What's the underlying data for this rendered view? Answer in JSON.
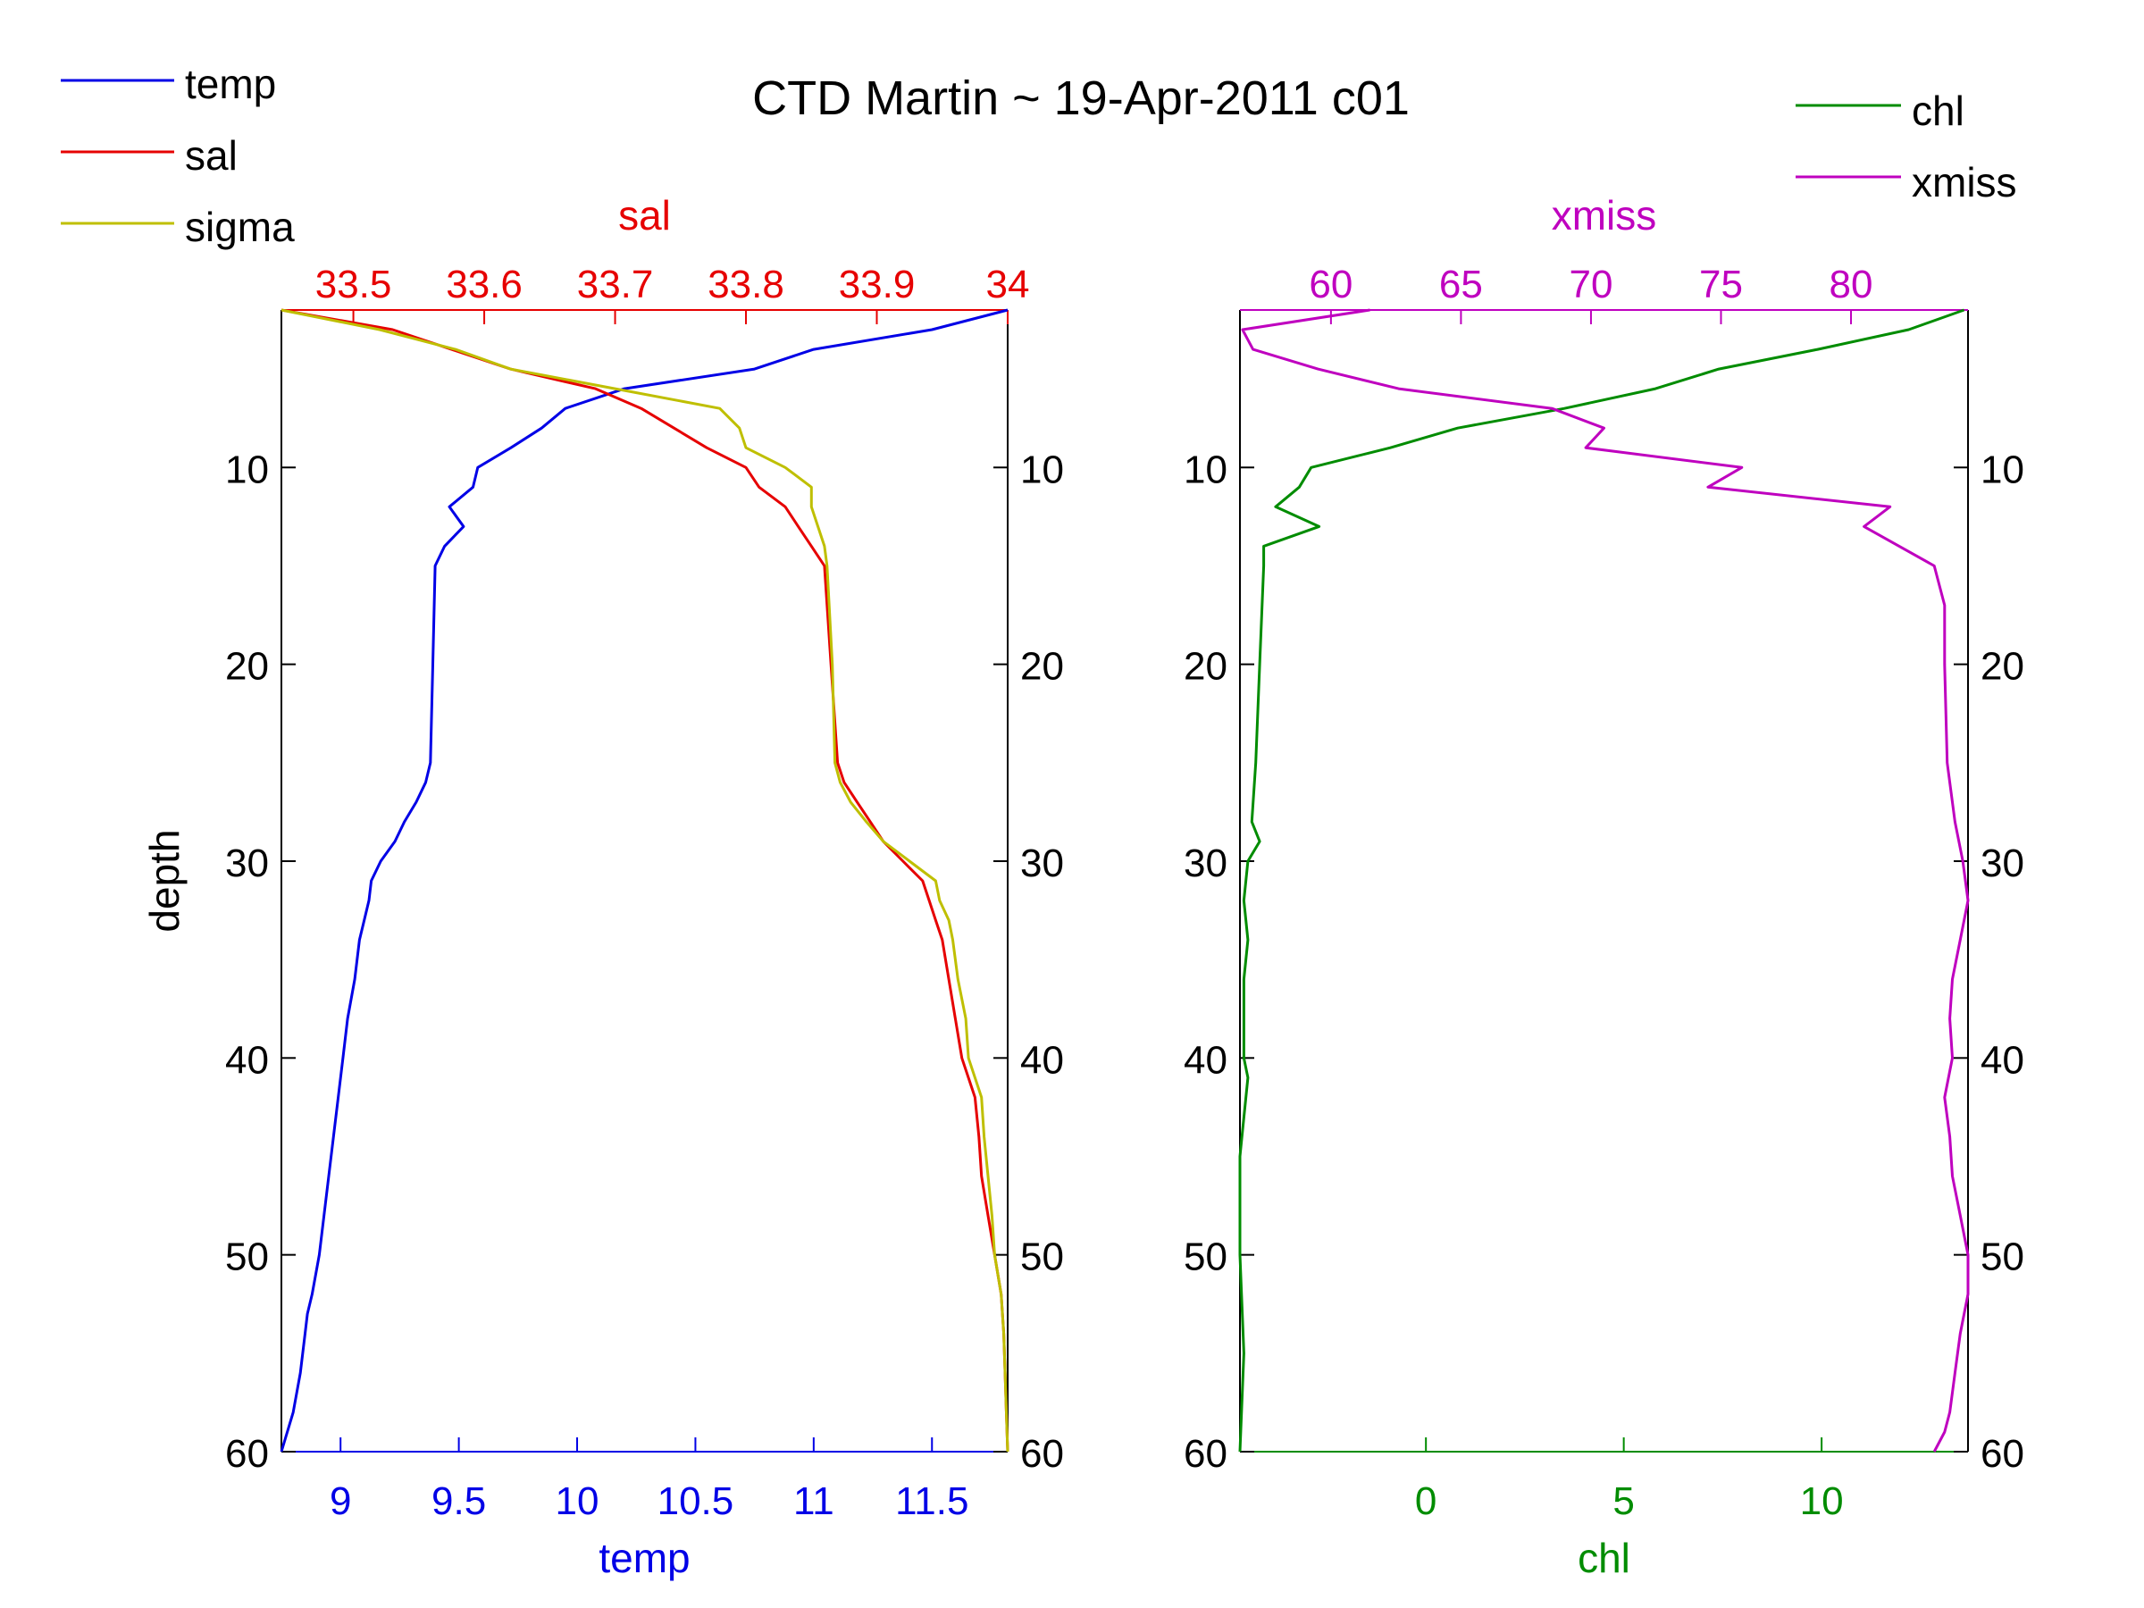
{
  "title": "CTD Martin ~ 19-Apr-2011 c01",
  "legend_left": [
    {
      "label": "temp",
      "color": "#0000e6"
    },
    {
      "label": "sal",
      "color": "#e60000"
    },
    {
      "label": "sigma",
      "color": "#bfbf00"
    }
  ],
  "legend_right": [
    {
      "label": "chl",
      "color": "#008c00"
    },
    {
      "label": "xmiss",
      "color": "#bf00bf"
    }
  ],
  "chart_data": [
    {
      "type": "line",
      "panel": "left",
      "ylabel": "depth",
      "ylim": [
        2,
        60
      ],
      "y_reversed": true,
      "yticks": [
        10,
        20,
        30,
        40,
        50,
        60
      ],
      "bottom_axis": {
        "label": "temp",
        "color": "#0000e6",
        "lim": [
          8.75,
          11.82
        ],
        "ticks": [
          9,
          9.5,
          10,
          10.5,
          11,
          11.5
        ],
        "tick_labels": [
          "9",
          "9.5",
          "10",
          "10.5",
          "11",
          "11.5"
        ]
      },
      "top_axis": {
        "label": "sal",
        "color": "#e60000",
        "lim": [
          33.445,
          34.0
        ],
        "ticks": [
          33.5,
          33.6,
          33.7,
          33.8,
          33.9,
          34.0
        ],
        "tick_labels": [
          "33.5",
          "33.6",
          "33.7",
          "33.8",
          "33.9",
          "34"
        ]
      },
      "series": [
        {
          "name": "temp",
          "axis": "bottom",
          "color": "#0000e6",
          "depth": [
            2,
            3,
            4,
            5,
            6,
            7,
            8,
            9,
            10,
            11,
            12,
            13,
            14,
            15,
            20,
            25,
            26,
            27,
            28,
            29,
            30,
            31,
            32,
            33,
            34,
            36,
            38,
            40,
            42,
            44,
            46,
            48,
            50,
            52,
            53,
            54,
            56,
            58,
            60
          ],
          "values": [
            11.82,
            11.5,
            11.0,
            10.75,
            10.2,
            9.95,
            9.85,
            9.72,
            9.58,
            9.56,
            9.46,
            9.52,
            9.44,
            9.4,
            9.39,
            9.38,
            9.36,
            9.32,
            9.27,
            9.23,
            9.17,
            9.13,
            9.12,
            9.1,
            9.08,
            9.06,
            9.03,
            9.01,
            8.99,
            8.97,
            8.95,
            8.93,
            8.91,
            8.88,
            8.86,
            8.85,
            8.83,
            8.8,
            8.75
          ]
        },
        {
          "name": "sal",
          "axis": "top",
          "color": "#e60000",
          "depth": [
            2,
            3,
            4,
            5,
            6,
            7,
            8,
            9,
            10,
            11,
            12,
            13,
            14,
            15,
            20,
            25,
            26,
            27,
            28,
            29,
            30,
            31,
            32,
            33,
            34,
            36,
            38,
            40,
            42,
            44,
            46,
            48,
            50,
            52,
            54,
            56,
            58,
            60
          ],
          "values": [
            33.445,
            33.53,
            33.575,
            33.62,
            33.685,
            33.72,
            33.745,
            33.77,
            33.8,
            33.81,
            33.83,
            33.84,
            33.85,
            33.86,
            33.865,
            33.87,
            33.875,
            33.885,
            33.895,
            33.905,
            33.92,
            33.935,
            33.94,
            33.945,
            33.95,
            33.955,
            33.96,
            33.965,
            33.975,
            33.978,
            33.98,
            33.985,
            33.99,
            33.995,
            33.997,
            33.998,
            33.999,
            34.0
          ]
        },
        {
          "name": "sigma",
          "axis": "top",
          "color": "#bfbf00",
          "scaled_to_axis": true,
          "depth": [
            2,
            3,
            4,
            5,
            6,
            7,
            8,
            9,
            10,
            11,
            12,
            13,
            14,
            15,
            20,
            25,
            26,
            27,
            28,
            29,
            30,
            31,
            32,
            33,
            34,
            36,
            38,
            40,
            42,
            44,
            46,
            48,
            50,
            52,
            54,
            56,
            58,
            60
          ],
          "values": [
            33.445,
            33.52,
            33.578,
            33.62,
            33.7,
            33.78,
            33.795,
            33.8,
            33.83,
            33.85,
            33.85,
            33.855,
            33.86,
            33.862,
            33.866,
            33.868,
            33.872,
            33.88,
            33.892,
            33.905,
            33.925,
            33.945,
            33.948,
            33.955,
            33.958,
            33.962,
            33.968,
            33.97,
            33.98,
            33.982,
            33.985,
            33.988,
            33.99,
            33.995,
            33.997,
            33.998,
            33.999,
            34.0
          ]
        }
      ]
    },
    {
      "type": "line",
      "panel": "right",
      "ylim": [
        2,
        60
      ],
      "y_reversed": true,
      "yticks": [
        10,
        20,
        30,
        40,
        50,
        60
      ],
      "bottom_axis": {
        "label": "chl",
        "color": "#008c00",
        "lim": [
          -4.7,
          13.7
        ],
        "ticks": [
          0,
          5,
          10
        ],
        "tick_labels": [
          "0",
          "5",
          "10"
        ]
      },
      "top_axis": {
        "label": "xmiss",
        "color": "#bf00bf",
        "lim": [
          56.5,
          84.5
        ],
        "ticks": [
          60,
          65,
          70,
          75,
          80
        ],
        "tick_labels": [
          "60",
          "65",
          "70",
          "75",
          "80"
        ]
      },
      "series": [
        {
          "name": "chl",
          "axis": "bottom",
          "color": "#008c00",
          "depth": [
            2,
            3,
            4,
            5,
            6,
            7,
            8,
            9,
            10,
            11,
            12,
            13,
            14,
            15,
            20,
            25,
            28,
            29,
            30,
            32,
            34,
            36,
            40,
            41,
            45,
            50,
            55,
            60
          ],
          "values": [
            13.6,
            12.2,
            9.9,
            7.4,
            5.8,
            3.5,
            0.8,
            -0.9,
            -2.9,
            -3.2,
            -3.8,
            -2.7,
            -4.1,
            -4.1,
            -4.2,
            -4.3,
            -4.4,
            -4.2,
            -4.5,
            -4.6,
            -4.5,
            -4.6,
            -4.6,
            -4.5,
            -4.7,
            -4.7,
            -4.6,
            -4.7
          ]
        },
        {
          "name": "xmiss",
          "axis": "top",
          "color": "#bf00bf",
          "depth": [
            2,
            3,
            4,
            5,
            6,
            7,
            8,
            9,
            10,
            11,
            12,
            13,
            15,
            17,
            20,
            25,
            28,
            30,
            32,
            34,
            36,
            38,
            40,
            42,
            44,
            46,
            48,
            50,
            52,
            54,
            56,
            58,
            59,
            60
          ],
          "values": [
            61.5,
            56.6,
            57,
            59.5,
            62.6,
            68.5,
            70.5,
            69.8,
            75.8,
            74.5,
            81.5,
            80.5,
            83.2,
            83.6,
            83.6,
            83.7,
            84.0,
            84.3,
            84.5,
            84.2,
            83.9,
            83.8,
            83.9,
            83.6,
            83.8,
            83.9,
            84.2,
            84.5,
            84.5,
            84.2,
            84.0,
            83.8,
            83.6,
            83.2
          ]
        }
      ]
    }
  ]
}
